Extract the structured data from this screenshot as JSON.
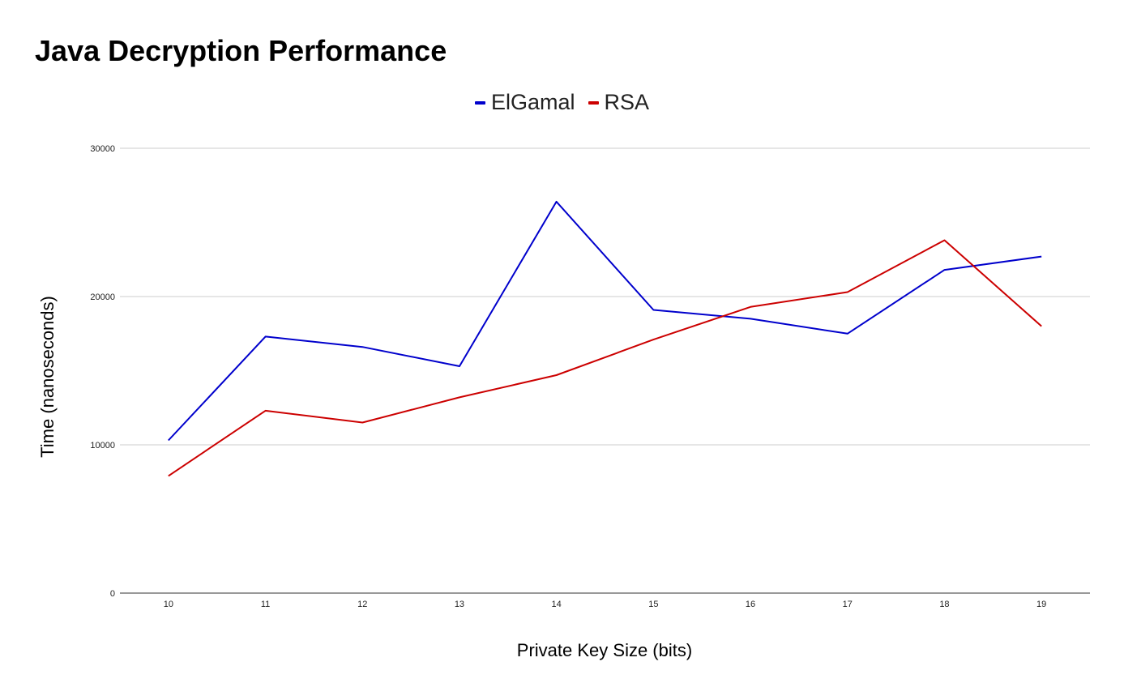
{
  "chart_data": {
    "type": "line",
    "title": "Java Decryption Performance",
    "xlabel": "Private Key Size (bits)",
    "ylabel": "Time (nanoseconds)",
    "categories": [
      "10",
      "11",
      "12",
      "13",
      "14",
      "15",
      "16",
      "17",
      "18",
      "19"
    ],
    "ylim": [
      0,
      30000
    ],
    "yticks": [
      "0",
      "10000",
      "20000",
      "30000"
    ],
    "grid": true,
    "legend_position": "top-center",
    "series": [
      {
        "name": "ElGamal",
        "color": "#0000cc",
        "values": [
          10300,
          17300,
          16600,
          15300,
          26400,
          19100,
          18500,
          17500,
          21800,
          22700
        ]
      },
      {
        "name": "RSA",
        "color": "#cc0000",
        "values": [
          7900,
          12300,
          11500,
          13200,
          14700,
          17100,
          19300,
          20300,
          23800,
          18000
        ]
      }
    ]
  }
}
